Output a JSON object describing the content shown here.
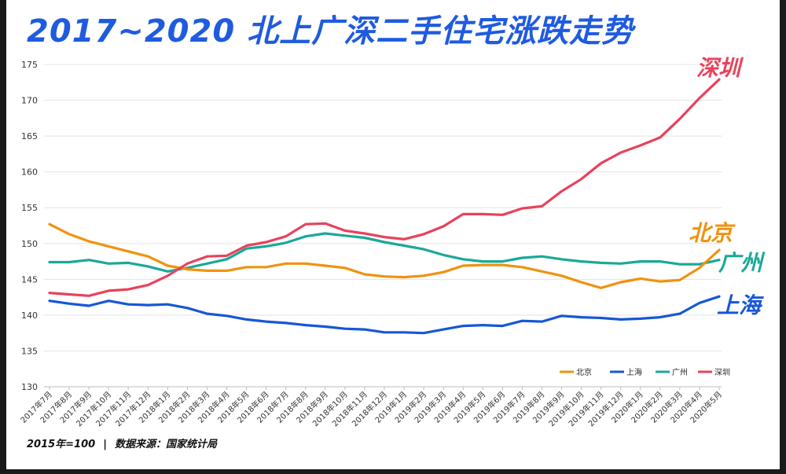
{
  "title": "2017~2020 北上广深二手住宅涨跌走势",
  "footnote": {
    "base": "2015年=100",
    "source": "数据来源：国家统计局"
  },
  "colors": {
    "北京": "#f0920f",
    "上海": "#1657d6",
    "广州": "#1aa898",
    "深圳": "#e8425c",
    "title": "#1f5be0"
  },
  "chart_data": {
    "type": "line",
    "title": "2017~2020 北上广深二手住宅涨跌走势",
    "xlabel": "",
    "ylabel": "",
    "ylim": [
      130,
      175
    ],
    "yticks": [
      130,
      135,
      140,
      145,
      150,
      155,
      160,
      165,
      170,
      175
    ],
    "grid": true,
    "legend": "bottom-right",
    "categories": [
      "2017年7月",
      "2017年8月",
      "2017年9月",
      "2017年10月",
      "2017年11月",
      "2017年12月",
      "2018年1月",
      "2018年2月",
      "2018年3月",
      "2018年4月",
      "2018年5月",
      "2018年6月",
      "2018年7月",
      "2018年8月",
      "2018年9月",
      "2018年10月",
      "2018年11月",
      "2018年12月",
      "2019年1月",
      "2019年2月",
      "2019年3月",
      "2019年4月",
      "2019年5月",
      "2019年6月",
      "2019年7月",
      "2019年8月",
      "2019年9月",
      "2019年10月",
      "2019年11月",
      "2019年12月",
      "2020年1月",
      "2020年2月",
      "2020年3月",
      "2020年4月",
      "2020年5月"
    ],
    "series": [
      {
        "name": "北京",
        "values": [
          152.7,
          151.3,
          150.3,
          149.6,
          148.9,
          148.2,
          146.9,
          146.4,
          146.2,
          146.2,
          146.7,
          146.7,
          147.2,
          147.2,
          146.9,
          146.6,
          145.7,
          145.4,
          145.3,
          145.5,
          146.0,
          146.9,
          147.0,
          147.0,
          146.7,
          146.1,
          145.5,
          144.6,
          143.8,
          144.6,
          145.1,
          144.7,
          144.9,
          146.6,
          149.1
        ]
      },
      {
        "name": "上海",
        "values": [
          142.0,
          141.6,
          141.3,
          142.0,
          141.5,
          141.4,
          141.5,
          141.0,
          140.2,
          139.9,
          139.4,
          139.1,
          138.9,
          138.6,
          138.4,
          138.1,
          138.0,
          137.6,
          137.6,
          137.5,
          138.0,
          138.5,
          138.6,
          138.5,
          139.2,
          139.1,
          139.9,
          139.7,
          139.6,
          139.4,
          139.5,
          139.7,
          140.2,
          141.7,
          142.6
        ]
      },
      {
        "name": "广州",
        "values": [
          147.4,
          147.4,
          147.7,
          147.2,
          147.3,
          146.8,
          146.1,
          146.6,
          147.2,
          147.8,
          149.3,
          149.6,
          150.1,
          151.0,
          151.4,
          151.1,
          150.8,
          150.2,
          149.7,
          149.2,
          148.4,
          147.8,
          147.5,
          147.5,
          148.0,
          148.2,
          147.8,
          147.5,
          147.3,
          147.2,
          147.5,
          147.5,
          147.1,
          147.1,
          147.7
        ]
      },
      {
        "name": "深圳",
        "values": [
          143.1,
          142.9,
          142.7,
          143.4,
          143.6,
          144.2,
          145.5,
          147.2,
          148.2,
          148.3,
          149.7,
          150.2,
          151.0,
          152.7,
          152.8,
          151.8,
          151.4,
          150.9,
          150.6,
          151.3,
          152.4,
          154.1,
          154.1,
          154.0,
          154.9,
          155.2,
          157.3,
          159.0,
          161.2,
          162.7,
          163.7,
          164.8,
          167.4,
          170.3,
          172.9
        ]
      }
    ]
  }
}
